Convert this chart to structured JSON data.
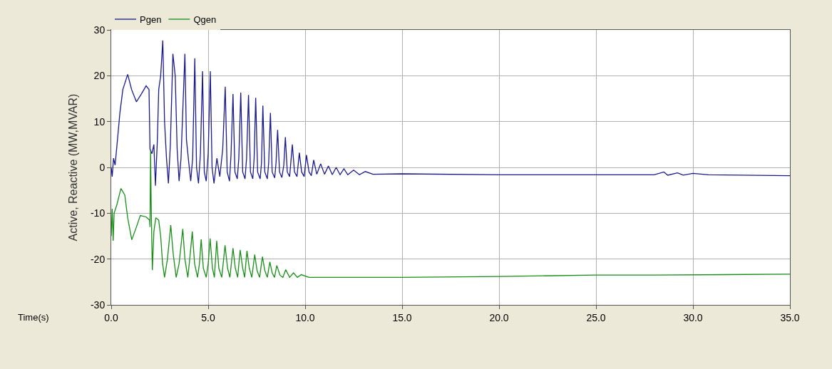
{
  "chart_data": {
    "type": "line",
    "xlabel": "Time(s)",
    "ylabel": "Active, Reactive (MW,MVAR)",
    "legend": "top",
    "grid": true,
    "marker": "none",
    "line_style": "solid",
    "xlim": [
      0,
      35
    ],
    "xticks": [
      {
        "value": 0,
        "label": "0.0"
      },
      {
        "value": 5,
        "label": "5.0"
      },
      {
        "value": 10,
        "label": "10.0"
      },
      {
        "value": 15,
        "label": "15.0"
      },
      {
        "value": 20,
        "label": "20.0"
      },
      {
        "value": 25,
        "label": "25.0"
      },
      {
        "value": 30,
        "label": "30.0"
      },
      {
        "value": 35,
        "label": "35.0"
      }
    ],
    "ylim": [
      -30,
      30
    ],
    "yticks": [
      -30,
      -20,
      -10,
      0,
      10,
      20,
      30
    ],
    "series": [
      {
        "name": "Pgen",
        "color": "#1a1a8c",
        "x": [
          0,
          0.05,
          0.12,
          0.2,
          0.3,
          0.45,
          0.6,
          0.85,
          1.05,
          1.3,
          1.55,
          1.8,
          1.95,
          2.0,
          2.1,
          2.2,
          2.28,
          2.38,
          2.45,
          2.55,
          2.66,
          2.75,
          2.85,
          2.95,
          3.05,
          3.18,
          3.3,
          3.4,
          3.5,
          3.6,
          3.8,
          3.88,
          4.0,
          4.1,
          4.2,
          4.31,
          4.4,
          4.5,
          4.6,
          4.71,
          4.8,
          4.9,
          5.0,
          5.11,
          5.2,
          5.3,
          5.45,
          5.6,
          5.75,
          5.88,
          5.98,
          6.1,
          6.18,
          6.28,
          6.38,
          6.5,
          6.58,
          6.68,
          6.78,
          6.9,
          6.98,
          7.08,
          7.18,
          7.3,
          7.37,
          7.45,
          7.55,
          7.68,
          7.75,
          7.82,
          7.92,
          8.05,
          8.12,
          8.21,
          8.3,
          8.43,
          8.5,
          8.58,
          8.68,
          8.8,
          8.9,
          8.98,
          9.08,
          9.2,
          9.34,
          9.45,
          9.58,
          9.7,
          9.82,
          9.95,
          10.07,
          10.2,
          10.32,
          10.44,
          10.6,
          10.8,
          11.0,
          11.2,
          11.4,
          11.6,
          11.8,
          12.0,
          12.2,
          12.5,
          12.8,
          13.1,
          13.5,
          15,
          20,
          25,
          28,
          28.5,
          28.7,
          29.2,
          29.5,
          30.0,
          30.8,
          35
        ],
        "values": [
          0,
          -2,
          2,
          0.5,
          5,
          12,
          17,
          20.3,
          17,
          14.3,
          16,
          17.8,
          17,
          4,
          3,
          5,
          -4,
          6,
          17,
          20,
          27.7,
          10,
          2,
          -3.5,
          5,
          24.8,
          20,
          4,
          -3,
          2,
          24.8,
          6,
          1,
          -3,
          2,
          23.8,
          0,
          -3.5,
          3,
          21,
          -1,
          -3,
          3,
          21,
          0,
          -3.5,
          2,
          -2,
          4,
          17.6,
          -1,
          -3,
          3,
          16,
          -1,
          -2.5,
          2,
          16.3,
          -1,
          -2.5,
          2,
          15.8,
          -1,
          -2.5,
          2,
          15.2,
          -1,
          -2.5,
          1,
          13.5,
          -1,
          -2.5,
          1,
          11.9,
          -1,
          -2.3,
          1,
          8.2,
          -1,
          -2.2,
          0.5,
          6.6,
          -1,
          -2,
          5,
          -1,
          -2,
          3.2,
          -1,
          -2,
          2.7,
          -1,
          -1.8,
          1.6,
          -1.5,
          0.8,
          -1.5,
          0.3,
          -1.6,
          0,
          -1.6,
          -0.3,
          -1.6,
          -0.6,
          -1.6,
          -0.9,
          -1.5,
          -1.4,
          -1.6,
          -1.6,
          -1.6,
          -1.0,
          -1.7,
          -1.2,
          -1.7,
          -1.3,
          -1.6,
          -1.8
        ]
      },
      {
        "name": "Qgen",
        "color": "#1a8c1a",
        "x": [
          0,
          0.05,
          0.1,
          0.15,
          0.3,
          0.5,
          0.7,
          0.85,
          1.06,
          1.3,
          1.5,
          1.8,
          1.98,
          2.0,
          2.03,
          2.06,
          2.12,
          2.2,
          2.3,
          2.45,
          2.55,
          2.65,
          2.75,
          2.9,
          3.07,
          3.2,
          3.35,
          3.5,
          3.69,
          3.8,
          3.95,
          4.05,
          4.18,
          4.3,
          4.45,
          4.55,
          4.64,
          4.75,
          4.9,
          5.0,
          5.1,
          5.22,
          5.32,
          5.44,
          5.55,
          5.7,
          5.87,
          6.0,
          6.12,
          6.28,
          6.4,
          6.52,
          6.65,
          6.78,
          6.88,
          7.0,
          7.12,
          7.25,
          7.4,
          7.52,
          7.65,
          7.8,
          7.92,
          8.05,
          8.18,
          8.3,
          8.42,
          8.54,
          8.7,
          8.85,
          9.0,
          9.2,
          9.4,
          9.6,
          9.8,
          10.2,
          15,
          20,
          25,
          28,
          35
        ],
        "values": [
          -15,
          -9,
          -16,
          -10,
          -8,
          -4.6,
          -6,
          -11,
          -15.8,
          -13,
          -10.5,
          -10.8,
          -11.5,
          -13,
          3.7,
          -8,
          -22.4,
          -14,
          -11,
          -11.5,
          -15,
          -21,
          -24,
          -20,
          -12.6,
          -19,
          -24,
          -21,
          -13.4,
          -20,
          -24,
          -20,
          -14,
          -21,
          -24,
          -21,
          -15.7,
          -22,
          -24,
          -21,
          -15.5,
          -22,
          -24,
          -16,
          -22,
          -24,
          -17,
          -22,
          -24,
          -17.6,
          -22,
          -24,
          -18,
          -22,
          -24,
          -18.2,
          -22,
          -24,
          -19,
          -22.5,
          -24,
          -19.5,
          -22.5,
          -24,
          -20.6,
          -23,
          -24,
          -21.4,
          -23.5,
          -24,
          -22.3,
          -24,
          -23,
          -24,
          -23.4,
          -24,
          -24,
          -23.8,
          -23.5,
          -23.5,
          -23.3
        ]
      }
    ]
  }
}
